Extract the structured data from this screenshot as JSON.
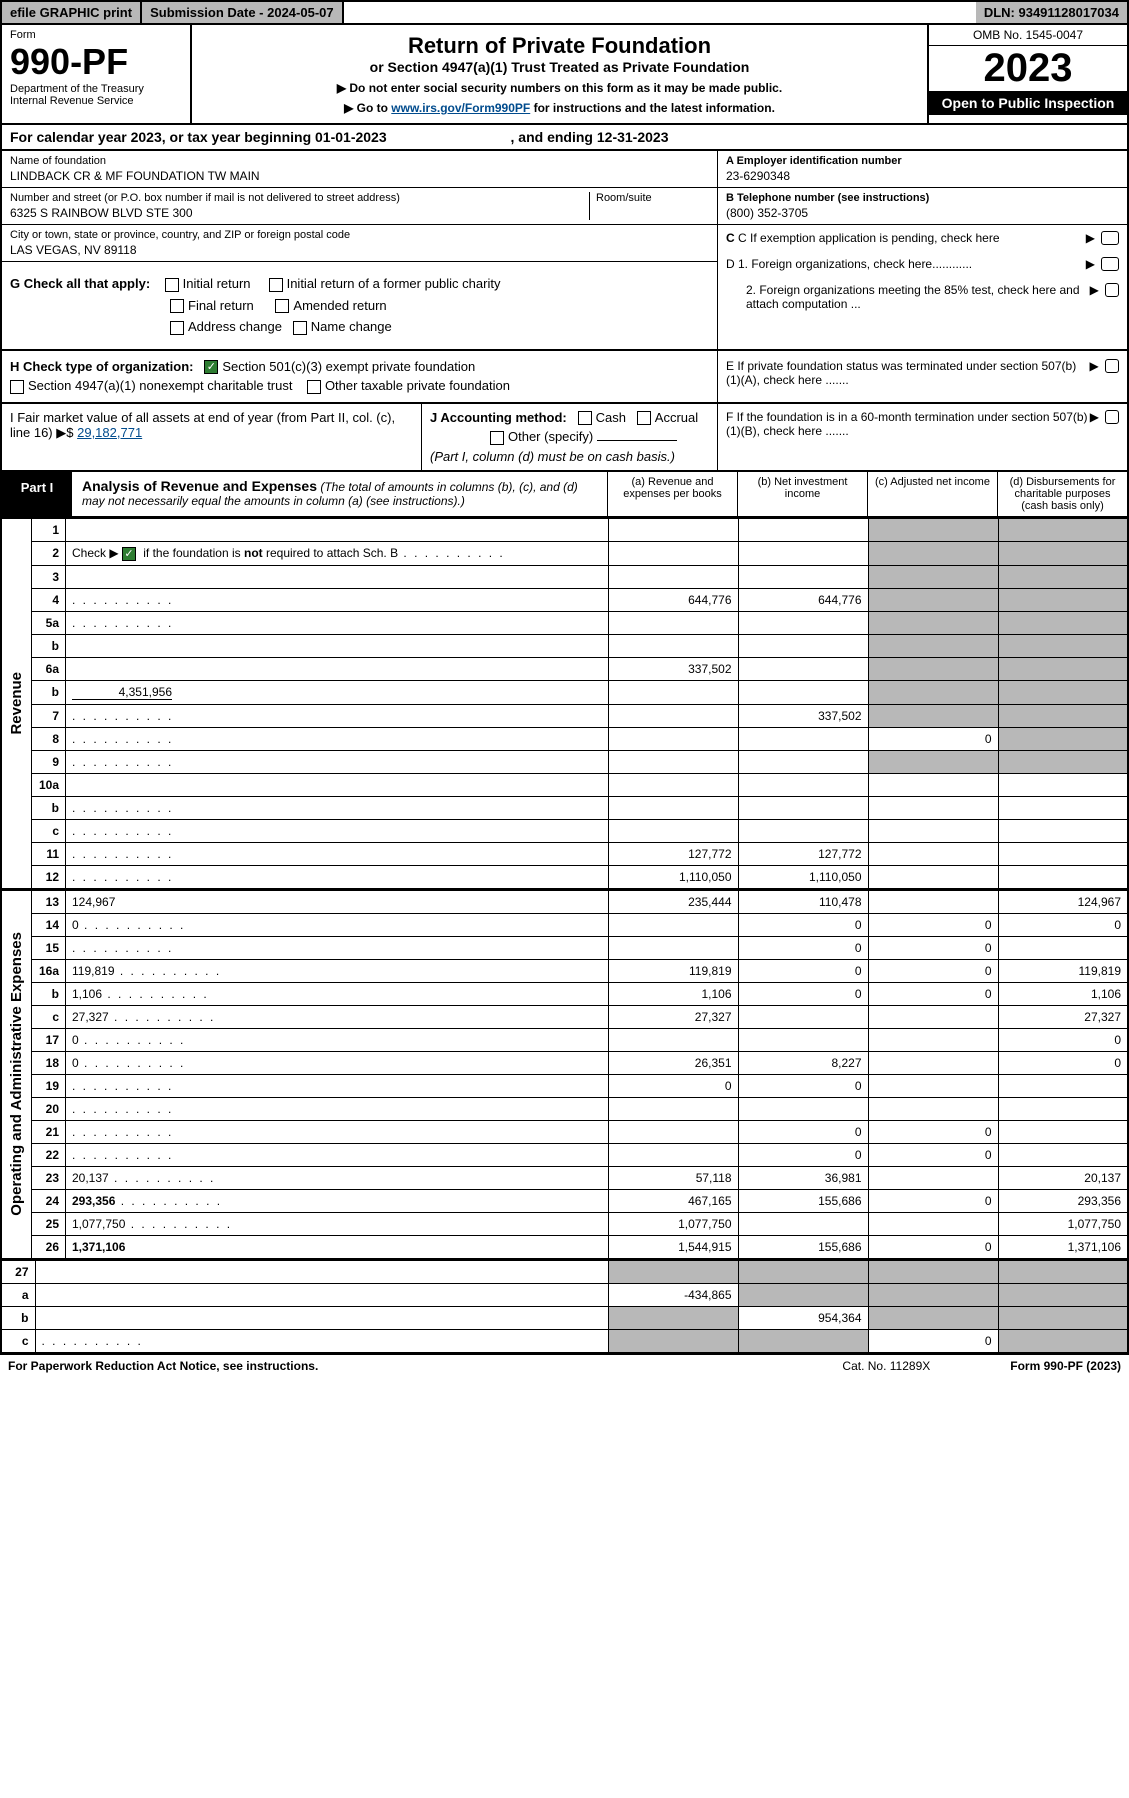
{
  "top": {
    "efile": "efile GRAPHIC print",
    "sub_date_label": "Submission Date - ",
    "sub_date": "2024-05-07",
    "dln_label": "DLN: ",
    "dln": "93491128017034"
  },
  "header": {
    "form_word": "Form",
    "form_num": "990-PF",
    "dept": "Department of the Treasury",
    "irs": "Internal Revenue Service",
    "title": "Return of Private Foundation",
    "subtitle": "or Section 4947(a)(1) Trust Treated as Private Foundation",
    "note1": "▶ Do not enter social security numbers on this form as it may be made public.",
    "note2_pre": "▶ Go to ",
    "note2_link": "www.irs.gov/Form990PF",
    "note2_post": " for instructions and the latest information.",
    "omb": "OMB No. 1545-0047",
    "year": "2023",
    "open": "Open to Public Inspection"
  },
  "cal": {
    "text_pre": "For calendar year 2023, or tax year beginning ",
    "begin": "01-01-2023",
    "text_mid": ", and ending ",
    "end": "12-31-2023"
  },
  "info": {
    "name_label": "Name of foundation",
    "name": "LINDBACK CR & MF FOUNDATION TW MAIN",
    "addr_label": "Number and street (or P.O. box number if mail is not delivered to street address)",
    "addr": "6325 S RAINBOW BLVD STE 300",
    "room_label": "Room/suite",
    "city_label": "City or town, state or province, country, and ZIP or foreign postal code",
    "city": "LAS VEGAS, NV  89118",
    "a_label": "A Employer identification number",
    "a_val": "23-6290348",
    "b_label": "B Telephone number (see instructions)",
    "b_val": "(800) 352-3705",
    "c_label": "C If exemption application is pending, check here",
    "d1": "D 1. Foreign organizations, check here............",
    "d2": "2. Foreign organizations meeting the 85% test, check here and attach computation ...",
    "e": "E  If private foundation status was terminated under section 507(b)(1)(A), check here .......",
    "f": "F  If the foundation is in a 60-month termination under section 507(b)(1)(B), check here ......."
  },
  "g": {
    "label": "G Check all that apply:",
    "o1": "Initial return",
    "o2": "Initial return of a former public charity",
    "o3": "Final return",
    "o4": "Amended return",
    "o5": "Address change",
    "o6": "Name change"
  },
  "h": {
    "label": "H Check type of organization:",
    "o1": "Section 501(c)(3) exempt private foundation",
    "o2": "Section 4947(a)(1) nonexempt charitable trust",
    "o3": "Other taxable private foundation"
  },
  "i": {
    "label": "I Fair market value of all assets at end of year (from Part II, col. (c), line 16) ▶$",
    "val": "29,182,771"
  },
  "j": {
    "label": "J Accounting method:",
    "cash": "Cash",
    "accrual": "Accrual",
    "other": "Other (specify)",
    "note": "(Part I, column (d) must be on cash basis.)"
  },
  "part1": {
    "label": "Part I",
    "title": "Analysis of Revenue and Expenses",
    "sub": "(The total of amounts in columns (b), (c), and (d) may not necessarily equal the amounts in column (a) (see instructions).)",
    "col_a": "(a)  Revenue and expenses per books",
    "col_b": "(b)  Net investment income",
    "col_c": "(c)  Adjusted net income",
    "col_d": "(d)  Disbursements for charitable purposes (cash basis only)"
  },
  "side": {
    "revenue": "Revenue",
    "expenses": "Operating and Administrative Expenses"
  },
  "rows": [
    {
      "n": "1",
      "d": "",
      "a": "",
      "b": "",
      "c": ""
    },
    {
      "n": "2",
      "d": "",
      "a": "",
      "b": "",
      "c": "",
      "cb": true,
      "dots": true
    },
    {
      "n": "3",
      "d": "",
      "a": "",
      "b": "",
      "c": ""
    },
    {
      "n": "4",
      "d": "",
      "a": "644,776",
      "b": "644,776",
      "c": "",
      "dots": true
    },
    {
      "n": "5a",
      "d": "",
      "a": "",
      "b": "",
      "c": "",
      "dots": true
    },
    {
      "n": "b",
      "d": "",
      "a": "",
      "b": "",
      "c": "",
      "inset": true
    },
    {
      "n": "6a",
      "d": "",
      "a": "337,502",
      "b": "",
      "c": ""
    },
    {
      "n": "b",
      "d": "",
      "a": "",
      "b": "",
      "c": "",
      "inline_val": "4,351,956"
    },
    {
      "n": "7",
      "d": "",
      "a": "",
      "b": "337,502",
      "c": "",
      "dots": true
    },
    {
      "n": "8",
      "d": "",
      "a": "",
      "b": "",
      "c": "0",
      "dots": true
    },
    {
      "n": "9",
      "d": "",
      "a": "",
      "b": "",
      "c": "",
      "dots": true
    },
    {
      "n": "10a",
      "d": "",
      "a": "",
      "b": "",
      "c": "",
      "inset": true
    },
    {
      "n": "b",
      "d": "",
      "a": "",
      "b": "",
      "c": "",
      "inset": true,
      "dots": true
    },
    {
      "n": "c",
      "d": "",
      "a": "",
      "b": "",
      "c": "",
      "dots": true
    },
    {
      "n": "11",
      "d": "",
      "a": "127,772",
      "b": "127,772",
      "c": "",
      "dots": true
    },
    {
      "n": "12",
      "d": "",
      "a": "1,110,050",
      "b": "1,110,050",
      "c": "",
      "bold": true,
      "dots": true
    }
  ],
  "exp_rows": [
    {
      "n": "13",
      "d": "124,967",
      "a": "235,444",
      "b": "110,478",
      "c": ""
    },
    {
      "n": "14",
      "d": "0",
      "a": "",
      "b": "0",
      "c": "0",
      "dots": true
    },
    {
      "n": "15",
      "d": "",
      "a": "",
      "b": "0",
      "c": "0",
      "dots": true
    },
    {
      "n": "16a",
      "d": "119,819",
      "a": "119,819",
      "b": "0",
      "c": "0",
      "dots": true
    },
    {
      "n": "b",
      "d": "1,106",
      "a": "1,106",
      "b": "0",
      "c": "0",
      "dots": true
    },
    {
      "n": "c",
      "d": "27,327",
      "a": "27,327",
      "b": "",
      "c": "",
      "dots": true
    },
    {
      "n": "17",
      "d": "0",
      "a": "",
      "b": "",
      "c": "",
      "dots": true
    },
    {
      "n": "18",
      "d": "0",
      "a": "26,351",
      "b": "8,227",
      "c": "",
      "dots": true
    },
    {
      "n": "19",
      "d": "",
      "a": "0",
      "b": "0",
      "c": "",
      "dots": true
    },
    {
      "n": "20",
      "d": "",
      "a": "",
      "b": "",
      "c": "",
      "dots": true
    },
    {
      "n": "21",
      "d": "",
      "a": "",
      "b": "0",
      "c": "0",
      "dots": true
    },
    {
      "n": "22",
      "d": "",
      "a": "",
      "b": "0",
      "c": "0",
      "dots": true
    },
    {
      "n": "23",
      "d": "20,137",
      "a": "57,118",
      "b": "36,981",
      "c": "",
      "dots": true
    },
    {
      "n": "24",
      "d": "293,356",
      "a": "467,165",
      "b": "155,686",
      "c": "0",
      "bold": true,
      "dots": true
    },
    {
      "n": "25",
      "d": "1,077,750",
      "a": "1,077,750",
      "b": "",
      "c": "",
      "dots": true
    },
    {
      "n": "26",
      "d": "1,371,106",
      "a": "1,544,915",
      "b": "155,686",
      "c": "0",
      "bold": true
    }
  ],
  "bottom_rows": [
    {
      "n": "27",
      "d": "",
      "a": "",
      "b": "",
      "c": ""
    },
    {
      "n": "a",
      "d": "",
      "a": "-434,865",
      "b": "",
      "c": "",
      "bold": true
    },
    {
      "n": "b",
      "d": "",
      "a": "",
      "b": "954,364",
      "c": "",
      "bold": true
    },
    {
      "n": "c",
      "d": "",
      "a": "",
      "b": "",
      "c": "0",
      "bold": true,
      "dots": true
    }
  ],
  "footer": {
    "left": "For Paperwork Reduction Act Notice, see instructions.",
    "mid": "Cat. No. 11289X",
    "right": "Form 990-PF (2023)"
  },
  "colors": {
    "gray": "#b8b8b8",
    "link": "#004b8d",
    "check": "#2e7d32"
  }
}
